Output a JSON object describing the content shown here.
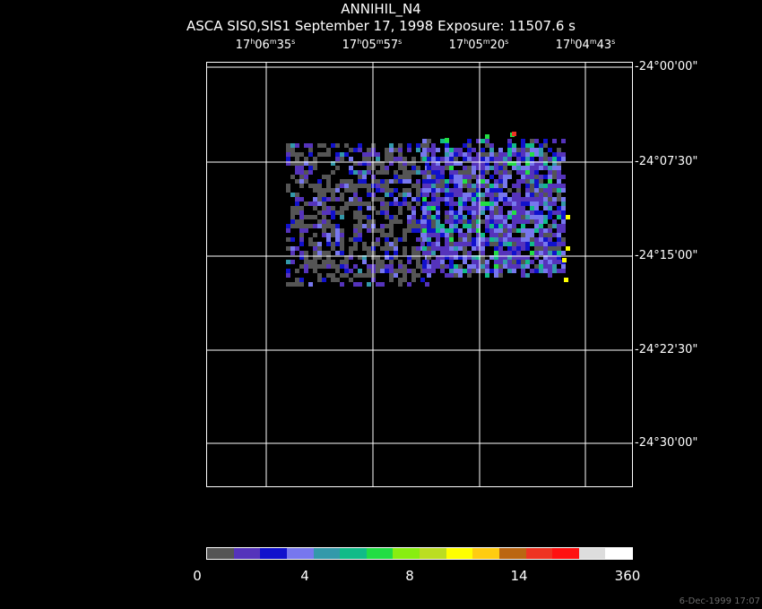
{
  "figure": {
    "title": "ANNIHIL_N4",
    "subtitle": "ASCA SIS0,SIS1 September 17, 1998 Exposure: 11507.6 s",
    "timestamp": "6-Dec-1999 17:07"
  },
  "ra_axis": [
    {
      "h": "17",
      "hs": "h",
      "m": "06",
      "ms": "m",
      "s": "35",
      "ss": "s"
    },
    {
      "h": "17",
      "hs": "h",
      "m": "05",
      "ms": "m",
      "s": "57",
      "ss": "s"
    },
    {
      "h": "17",
      "hs": "h",
      "m": "05",
      "ms": "m",
      "s": "20",
      "ss": "s"
    },
    {
      "h": "17",
      "hs": "h",
      "m": "04",
      "ms": "m",
      "s": "43",
      "ss": "s"
    }
  ],
  "dec_axis": [
    {
      "label": "-24°00'00\""
    },
    {
      "label": "-24°07'30\""
    },
    {
      "label": "-24°15'00\""
    },
    {
      "label": "-24°22'30\""
    },
    {
      "label": "-24°30'00\""
    }
  ],
  "colorbar": {
    "colors": [
      "#555555",
      "#5533bb",
      "#1111cc",
      "#7777ee",
      "#3399aa",
      "#11bb88",
      "#22dd44",
      "#88ee11",
      "#bbdd22",
      "#ffff00",
      "#ffcc11",
      "#bb6611",
      "#ee3322",
      "#ff1111",
      "#dddddd",
      "#ffffff"
    ],
    "labels": [
      {
        "text": "0",
        "value": 0
      },
      {
        "text": "4",
        "value": 4
      },
      {
        "text": "8",
        "value": 8
      },
      {
        "text": "14",
        "value": 14
      },
      {
        "text": "360",
        "value": 360
      }
    ]
  },
  "image": {
    "description_colors": {
      "background": "#000000",
      "grid": "#ffffff"
    }
  }
}
